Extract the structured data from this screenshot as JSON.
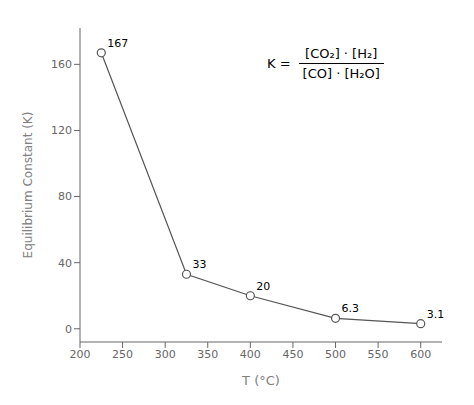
{
  "chart_data": {
    "type": "line",
    "x": [
      225,
      325,
      400,
      500,
      600
    ],
    "values": [
      167,
      33,
      20,
      6.3,
      3.1
    ],
    "color": "#555555",
    "marker": "circle",
    "data_labels": true,
    "xlabel": "T (°C)",
    "ylabel": "Equilibrium Constant (K)",
    "xlim": [
      200,
      625
    ],
    "xticks": [
      200,
      250,
      300,
      350,
      400,
      450,
      500,
      550,
      600
    ],
    "ylim": [
      -8,
      182
    ],
    "yticks": [
      0,
      40,
      80,
      120,
      160
    ],
    "grid": false,
    "annotations": [
      "K =",
      "[CO₂] · [H₂]",
      "[CO] · [H₂O]"
    ]
  }
}
